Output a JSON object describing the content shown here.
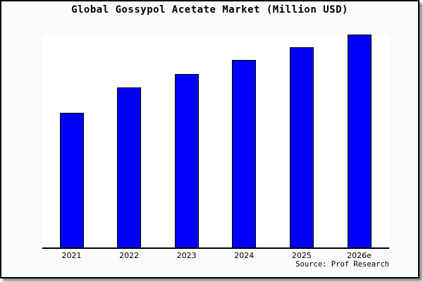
{
  "title": "Global Gossypol Acetate Market (Million USD)",
  "source": "Source: Prof Research",
  "colors": {
    "bar_fill": "#0000fa",
    "bar_border": "#000000",
    "canvas_background": "#fafafa",
    "plot_background": "#ffffff",
    "axis": "#000000",
    "frame_border": "#000000"
  },
  "chart_data": {
    "type": "bar",
    "title": "Global Gossypol Acetate Market (Million USD)",
    "categories": [
      "2021",
      "2022",
      "2023",
      "2024",
      "2025",
      "2026e"
    ],
    "values": [
      63,
      75,
      81.5,
      88,
      94,
      100
    ],
    "value_scale": "relative, tallest bar (2026e) = 100; no y-axis labels shown",
    "xlabel": "",
    "ylabel": "",
    "ylim": [
      0,
      100
    ],
    "grid": false,
    "legend": "none",
    "annotations": [
      "Source: Prof Research"
    ]
  }
}
